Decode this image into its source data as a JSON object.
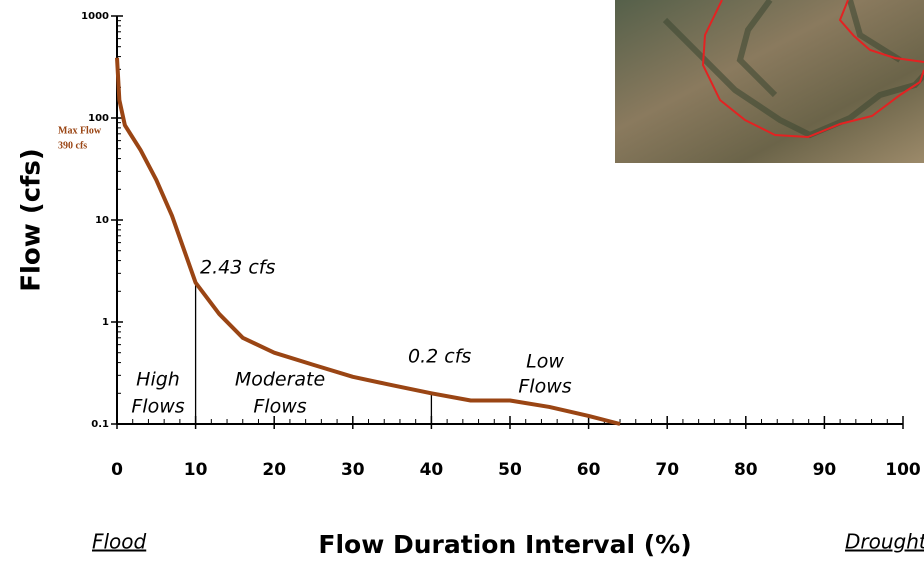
{
  "chart_data": {
    "type": "line",
    "x_label": "Flow Duration Interval (%)",
    "y_label": "Flow (cfs)",
    "log_y": true,
    "xlim": [
      0,
      100
    ],
    "ylim": [
      0.1,
      1000
    ],
    "xticks": [
      0,
      10,
      20,
      30,
      40,
      50,
      60,
      70,
      80,
      90,
      100
    ],
    "yticks": [
      0.1,
      1,
      10,
      100,
      1000
    ],
    "series": [
      {
        "color": "#9a4514",
        "x": [
          0,
          0.3,
          1,
          3,
          5,
          7,
          10,
          13,
          16,
          20,
          25,
          30,
          35,
          40,
          45,
          50,
          55,
          60,
          64
        ],
        "values": [
          390,
          150,
          85,
          48.5,
          24.7,
          11,
          2.43,
          1.2,
          0.7,
          0.5,
          0.38,
          0.29,
          0.24,
          0.2,
          0.17,
          0.17,
          0.147,
          0.12,
          0.1
        ]
      }
    ],
    "max_flow": {
      "value": 390,
      "label": [
        "Max Flow",
        "390 cfs"
      ]
    },
    "markers": [
      {
        "x": 10,
        "y": 2.43,
        "label": "2.43 cfs"
      },
      {
        "x": 40,
        "y": 0.2,
        "label": "0.2 cfs"
      }
    ],
    "regions": [
      [
        "High",
        "Flows"
      ],
      [
        "Moderate",
        "Flows"
      ],
      [
        "Low",
        "Flows"
      ]
    ],
    "end_labels": [
      "Flood",
      "Drought"
    ]
  }
}
